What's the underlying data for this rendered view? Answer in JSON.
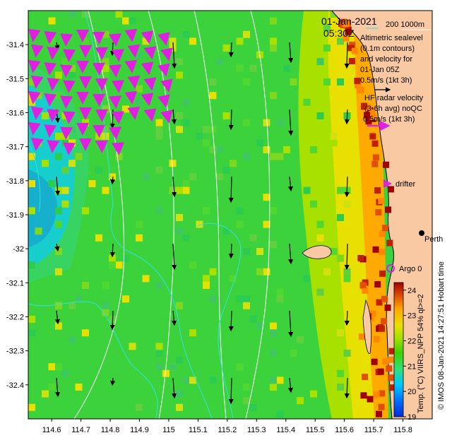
{
  "title": {
    "date": "01-Jan-2021",
    "time": "05:30Z",
    "scale_label": "200  1000m"
  },
  "legend": {
    "altimetric": [
      "Altimetric sealevel",
      "(0.1m contours)",
      "and velocity for",
      "01-Jan 05Z",
      "0.5m/s (1kt 3h)"
    ],
    "hf_radar": [
      "HF radar velocity",
      "(3-6h avg) noQC",
      "0.5m/s (1kt 3h)"
    ],
    "drifter": "drifter",
    "argo": "Argo 0"
  },
  "places": {
    "perth": "Perth"
  },
  "colorbar": {
    "label": "Temp. (°C) VIIRS_NPP 54% ql>=2",
    "ticks": [
      "24",
      "23",
      "22",
      "21",
      "20",
      "19"
    ],
    "min": 19,
    "max": 24.3,
    "colors": [
      "#002bd5",
      "#0070ff",
      "#00c8ff",
      "#30e070",
      "#40d000",
      "#a0e000",
      "#e8e000",
      "#ffaa00",
      "#e05000",
      "#a00000"
    ]
  },
  "credit": "© IMOS 08-Jan-2021 14:27:51 Hobart time",
  "axes": {
    "x_ticks": [
      "114.6",
      "114.7",
      "114.8",
      "114.9",
      "115",
      "115.1",
      "115.2",
      "115.3",
      "115.4",
      "115.5",
      "115.6",
      "115.7",
      "115.8"
    ],
    "y_ticks": [
      "-31.4",
      "-31.5",
      "-31.6",
      "-31.7",
      "-31.8",
      "-31.9",
      "-32",
      "-32.1",
      "-32.2",
      "-32.3",
      "-32.4"
    ],
    "xlim": [
      114.52,
      115.9
    ],
    "ylim": [
      -32.5,
      -31.3
    ]
  },
  "colors": {
    "land": "#f9c9a3",
    "altimetry_arrow": "#000000",
    "hf_radar_arrow": "#e020e0",
    "sealevel_contour": "#ffffff",
    "bathy_contour": "#30e0e0",
    "argo_marker": "#e020e0"
  }
}
